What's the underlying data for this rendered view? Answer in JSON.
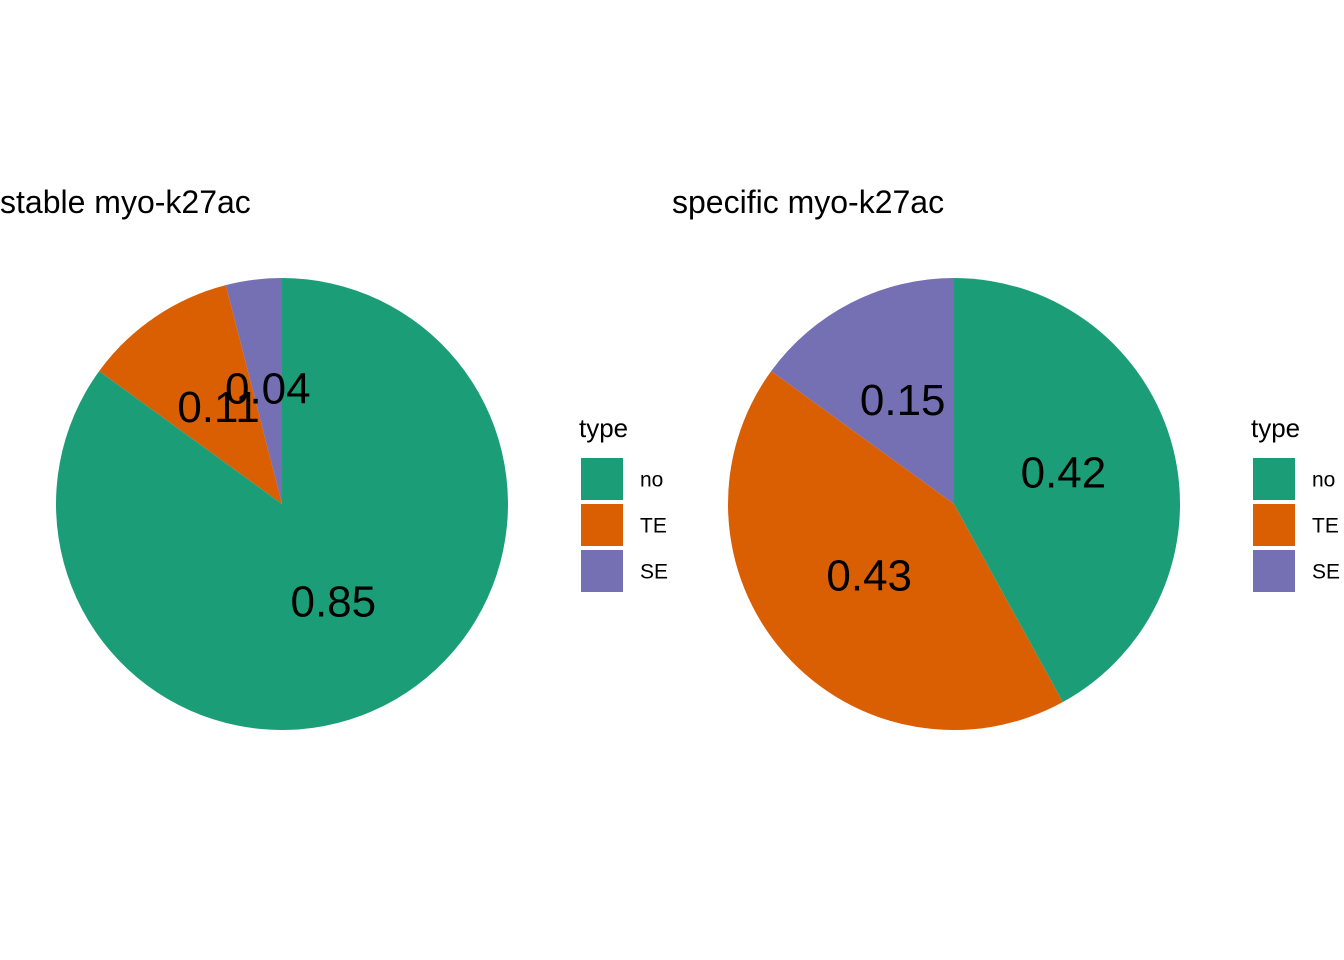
{
  "palette": {
    "no": "#1b9e77",
    "TE": "#d95f02",
    "SE": "#7570b3"
  },
  "chart_data": [
    {
      "type": "pie",
      "title": "stable myo-k27ac",
      "legend_title": "type",
      "legend_position": "right",
      "direction": "counterclockwise",
      "start_angle": "12 o'clock",
      "slices": [
        {
          "category": "SE",
          "value": 0.04,
          "label": "0.04"
        },
        {
          "category": "TE",
          "value": 0.11,
          "label": "0.11"
        },
        {
          "category": "no",
          "value": 0.85,
          "label": "0.85"
        }
      ],
      "legend": [
        "no",
        "TE",
        "SE"
      ]
    },
    {
      "type": "pie",
      "title": "specific myo-k27ac",
      "legend_title": "type",
      "legend_position": "right",
      "direction": "counterclockwise",
      "start_angle": "12 o'clock",
      "slices": [
        {
          "category": "SE",
          "value": 0.15,
          "label": "0.15"
        },
        {
          "category": "TE",
          "value": 0.43,
          "label": "0.43"
        },
        {
          "category": "no",
          "value": 0.42,
          "label": "0.42"
        }
      ],
      "legend": [
        "no",
        "TE",
        "SE"
      ]
    }
  ]
}
